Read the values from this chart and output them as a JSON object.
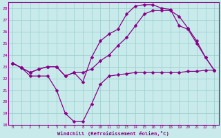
{
  "xlabel": "Windchill (Refroidissement éolien,°C)",
  "xlim": [
    -0.5,
    23.5
  ],
  "ylim": [
    18,
    28.5
  ],
  "yticks": [
    18,
    19,
    20,
    21,
    22,
    23,
    24,
    25,
    26,
    27,
    28
  ],
  "xticks": [
    0,
    1,
    2,
    3,
    4,
    5,
    6,
    7,
    8,
    9,
    10,
    11,
    12,
    13,
    14,
    15,
    16,
    17,
    18,
    19,
    20,
    21,
    22,
    23
  ],
  "background_color": "#c8eaea",
  "line_color": "#880088",
  "grid_color": "#99cccc",
  "line1_x": [
    0,
    1,
    2,
    3,
    4,
    5,
    6,
    7,
    8,
    9,
    10,
    11,
    12,
    13,
    14,
    15,
    16,
    17,
    18,
    19,
    20,
    21,
    22,
    23
  ],
  "line1_y": [
    23.3,
    22.9,
    22.2,
    22.2,
    22.2,
    21.0,
    19.0,
    18.3,
    18.3,
    19.8,
    21.5,
    22.2,
    22.3,
    22.4,
    22.5,
    22.5,
    22.5,
    22.5,
    22.5,
    22.5,
    22.6,
    22.6,
    22.7,
    22.7
  ],
  "line2_x": [
    0,
    1,
    2,
    3,
    4,
    5,
    6,
    7,
    8,
    9,
    10,
    11,
    12,
    13,
    14,
    15,
    16,
    17,
    18,
    19,
    20,
    21,
    22,
    23
  ],
  "line2_y": [
    23.3,
    22.9,
    22.5,
    22.8,
    23.0,
    23.0,
    22.2,
    22.5,
    22.5,
    22.8,
    23.5,
    24.0,
    24.8,
    25.5,
    26.5,
    27.5,
    27.8,
    27.8,
    27.8,
    27.3,
    26.3,
    25.2,
    23.8,
    22.7
  ],
  "line3_x": [
    0,
    1,
    2,
    3,
    4,
    5,
    6,
    7,
    8,
    9,
    10,
    11,
    12,
    13,
    14,
    15,
    16,
    17,
    18,
    19,
    20,
    21,
    22,
    23
  ],
  "line3_y": [
    23.3,
    22.9,
    22.5,
    22.8,
    23.0,
    23.0,
    22.2,
    22.5,
    21.7,
    23.8,
    25.2,
    25.8,
    26.2,
    27.5,
    28.2,
    28.3,
    28.3,
    28.0,
    27.9,
    26.5,
    26.2,
    25.0,
    23.8,
    22.7
  ],
  "markersize": 2.5,
  "linewidth": 0.9
}
